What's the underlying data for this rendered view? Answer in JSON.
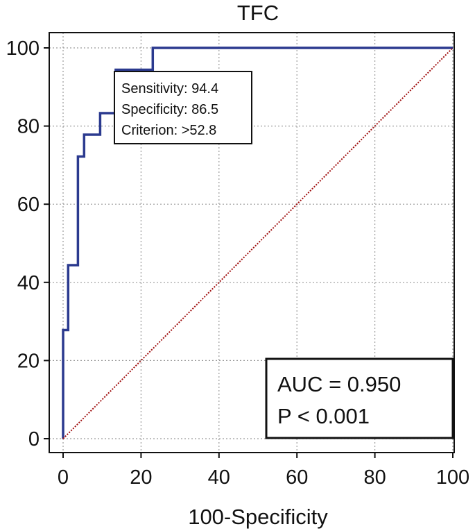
{
  "chart_data": {
    "type": "line",
    "title": "TFC",
    "xlabel": "100-Specificity",
    "ylabel": "",
    "xlim": [
      0,
      100
    ],
    "ylim": [
      0,
      100
    ],
    "xticks": [
      0,
      20,
      40,
      60,
      80,
      100
    ],
    "yticks": [
      0,
      20,
      40,
      60,
      80,
      100
    ],
    "grid": true,
    "series": [
      {
        "color": "#2b3a8f",
        "style": "step",
        "points": [
          [
            0,
            0
          ],
          [
            0,
            27.8
          ],
          [
            1.3,
            27.8
          ],
          [
            1.3,
            44.4
          ],
          [
            3.8,
            44.4
          ],
          [
            3.8,
            72.2
          ],
          [
            5.4,
            72.2
          ],
          [
            5.4,
            77.8
          ],
          [
            9.5,
            77.8
          ],
          [
            9.5,
            83.3
          ],
          [
            13.5,
            83.3
          ],
          [
            13.5,
            94.4
          ],
          [
            23.0,
            94.4
          ],
          [
            23.0,
            100
          ],
          [
            100,
            100
          ]
        ]
      },
      {
        "color": "#a01010",
        "style": "dotted",
        "points": [
          [
            0,
            0
          ],
          [
            100,
            100
          ]
        ]
      }
    ],
    "annotation": {
      "lines": [
        "Sensitivity: 94.4",
        "Specificity: 86.5",
        "Criterion: >52.8"
      ],
      "point": [
        13.5,
        94.4
      ]
    },
    "stats": {
      "auc": "AUC = 0.950",
      "p": "P < 0.001"
    }
  }
}
